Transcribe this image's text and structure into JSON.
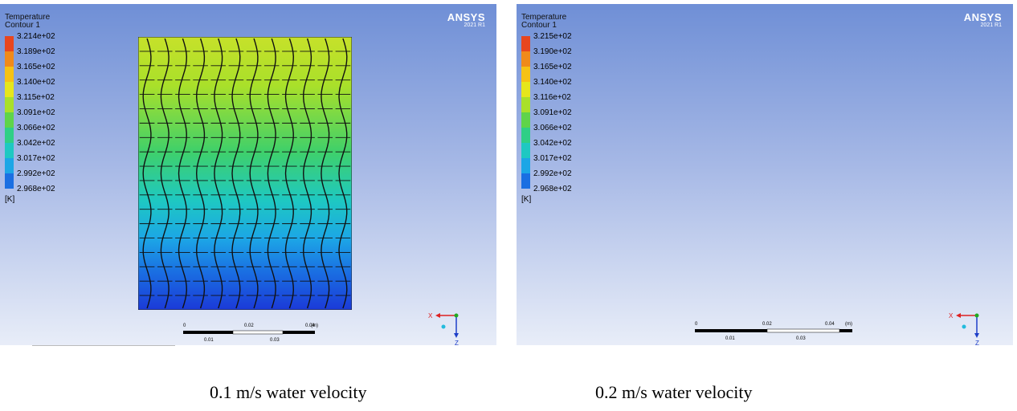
{
  "panels": [
    {
      "legend_title": [
        "Temperature",
        "Contour 1"
      ],
      "legend_values": [
        "3.214e+02",
        "3.189e+02",
        "3.165e+02",
        "3.140e+02",
        "3.115e+02",
        "3.091e+02",
        "3.066e+02",
        "3.042e+02",
        "3.017e+02",
        "2.992e+02",
        "2.968e+02"
      ],
      "unit": "[K]",
      "logo": {
        "brand": "ANSYS",
        "version": "2021 R1"
      },
      "scale": {
        "top_ticks": [
          "0",
          "0.02",
          "0.04",
          "(m)"
        ],
        "bottom_ticks": [
          "0.01",
          "0.03"
        ]
      },
      "caption": "0.1 m/s water velocity"
    },
    {
      "legend_title": [
        "Temperature",
        "Contour 1"
      ],
      "legend_values": [
        "3.215e+02",
        "3.190e+02",
        "3.165e+02",
        "3.140e+02",
        "3.116e+02",
        "3.091e+02",
        "3.066e+02",
        "3.042e+02",
        "3.017e+02",
        "2.992e+02",
        "2.968e+02"
      ],
      "unit": "[K]",
      "logo": {
        "brand": "ANSYS",
        "version": "2021 R1"
      },
      "scale": {
        "top_ticks": [
          "0",
          "0.02",
          "0.04",
          "(m)"
        ],
        "bottom_ticks": [
          "0.01",
          "0.03"
        ]
      },
      "caption": "0.2 m/s water velocity"
    }
  ],
  "colormap": [
    "#e8461e",
    "#f08a1a",
    "#f6c214",
    "#e6e61c",
    "#a9e02a",
    "#5fd44a",
    "#2fcf86",
    "#1ec8c2",
    "#1ca6e6",
    "#1a6fe2",
    "#1b3ad8"
  ],
  "triad_axes": [
    "X",
    "Z"
  ]
}
